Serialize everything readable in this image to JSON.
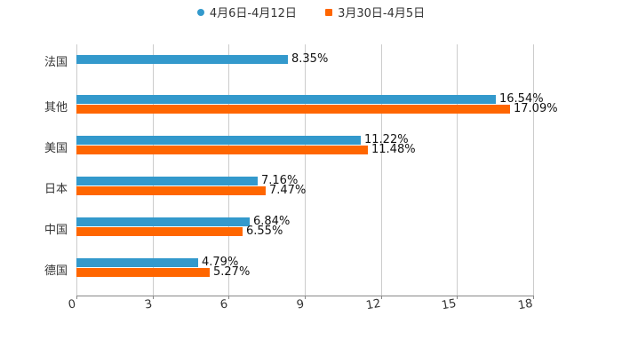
{
  "chart_data": {
    "type": "bar",
    "orientation": "horizontal",
    "title": "",
    "xlabel": "",
    "ylabel": "",
    "xlim": [
      0,
      18
    ],
    "x_ticks": [
      "0",
      "3",
      "6",
      "9",
      "12",
      "15",
      "18"
    ],
    "grid": true,
    "legend_position": "top",
    "categories": [
      "法国",
      "其他",
      "美国",
      "日本",
      "中国",
      "德国"
    ],
    "series": [
      {
        "name": "4月6日-4月12日",
        "color": "#3399cc",
        "values": [
          8.35,
          16.54,
          11.22,
          7.16,
          6.84,
          4.79
        ],
        "labels": [
          "8.35%",
          "16.54%",
          "11.22%",
          "7.16%",
          "6.84%",
          "4.79%"
        ]
      },
      {
        "name": "3月30日-4月5日",
        "color": "#ff6600",
        "values": [
          null,
          17.09,
          11.48,
          7.47,
          6.55,
          5.27
        ],
        "labels": [
          "",
          "17.09%",
          "11.48%",
          "7.47%",
          "6.55%",
          "5.27%"
        ]
      }
    ]
  },
  "legend": {
    "items": [
      {
        "label": "4月6日-4月12日",
        "color": "#3399cc",
        "marker": "circle"
      },
      {
        "label": "3月30日-4月5日",
        "color": "#ff6600",
        "marker": "square"
      }
    ]
  }
}
